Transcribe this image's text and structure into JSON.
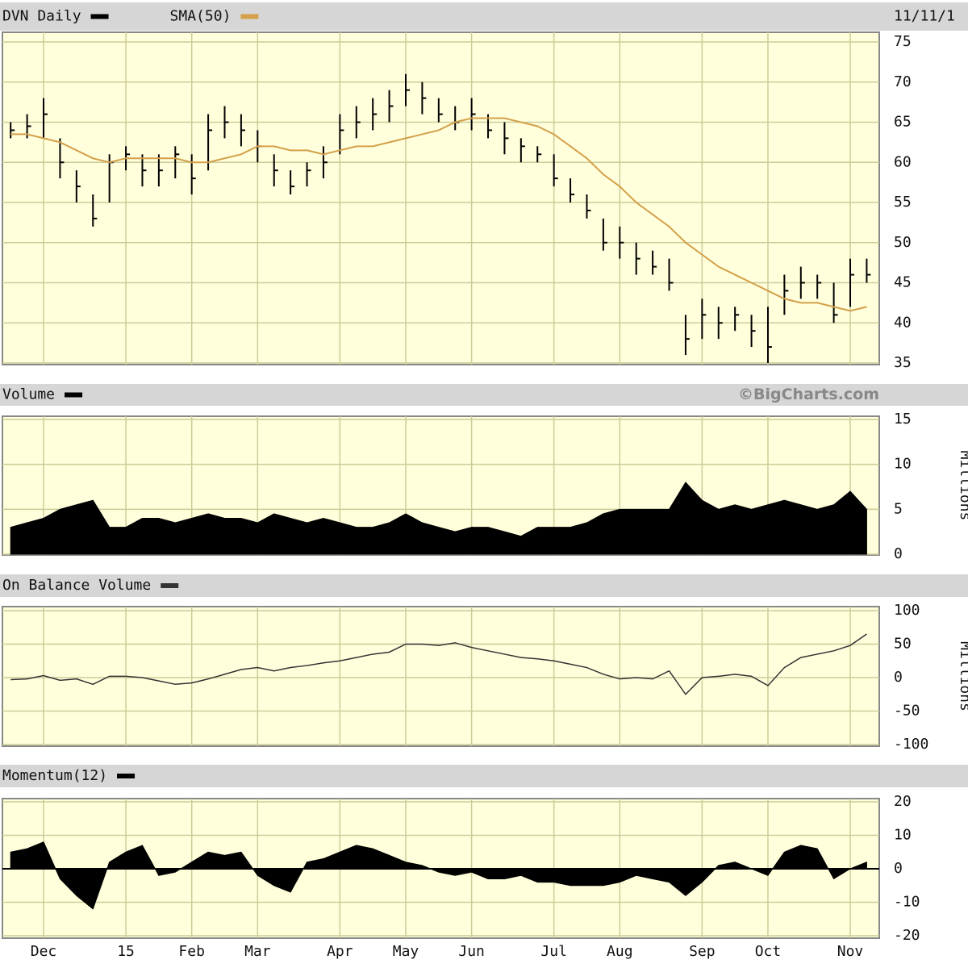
{
  "chart_data": [
    {
      "type": "ohlc",
      "date": "11/11/1",
      "series": [
        {
          "name": "DVN Daily",
          "color": "#000000",
          "high": [
            65,
            66,
            68,
            63,
            59,
            56,
            61,
            62,
            61,
            61,
            62,
            61,
            66,
            67,
            66,
            64,
            61,
            59,
            60,
            62,
            66,
            67,
            68,
            69,
            71,
            70,
            68,
            67,
            68,
            66,
            65,
            63,
            62,
            61,
            58,
            56,
            53,
            52,
            50,
            49,
            48,
            41,
            43,
            42,
            42,
            41,
            42,
            46,
            47,
            46,
            45,
            48,
            48
          ],
          "low": [
            63,
            63,
            63,
            58,
            55,
            52,
            55,
            59,
            57,
            57,
            58,
            56,
            59,
            63,
            62,
            60,
            57,
            56,
            57,
            58,
            61,
            63,
            64,
            65,
            67,
            66,
            65,
            64,
            64,
            63,
            61,
            60,
            60,
            57,
            55,
            53,
            49,
            48,
            46,
            46,
            44,
            36,
            38,
            38,
            39,
            37,
            35,
            41,
            43,
            43,
            40,
            42,
            45
          ],
          "values": [
            64,
            64.5,
            66,
            60,
            57,
            53,
            60,
            61,
            59,
            59,
            61,
            58,
            64,
            65,
            64,
            62,
            59,
            57,
            59,
            60,
            64,
            65,
            66,
            67,
            69,
            68,
            66,
            65,
            66,
            64,
            63,
            62,
            61,
            58,
            56,
            54,
            50,
            50,
            48,
            47,
            45,
            38,
            41,
            40,
            41,
            39,
            37,
            44,
            45,
            45,
            41,
            46,
            46
          ]
        },
        {
          "name": "SMA(50)",
          "color": "#d4a04a",
          "values": [
            63.5,
            63.5,
            63,
            62.5,
            61.5,
            60.5,
            60,
            60.5,
            60.5,
            60.5,
            60.5,
            60,
            60,
            60.5,
            61,
            62,
            62,
            61.5,
            61.5,
            61,
            61.5,
            62,
            62,
            62.5,
            63,
            63.5,
            64,
            65,
            65.5,
            65.5,
            65.5,
            65,
            64.5,
            63.5,
            62,
            60.5,
            58.5,
            57,
            55,
            53.5,
            52,
            50,
            48.5,
            47,
            46,
            45,
            44,
            43,
            42.5,
            42.5,
            42,
            41.5,
            42
          ]
        }
      ],
      "ylim": [
        35,
        75
      ],
      "yticks": [
        35,
        40,
        45,
        50,
        55,
        60,
        65,
        70,
        75
      ],
      "grid": true
    },
    {
      "type": "area",
      "credit": "©BigCharts.com",
      "y_label": "Millions",
      "series": [
        {
          "name": "Volume",
          "color": "#000000",
          "values": [
            3,
            3.5,
            4,
            5,
            5.5,
            6,
            3,
            3,
            4,
            4,
            3.5,
            4,
            4.5,
            4,
            4,
            3.5,
            4.5,
            4,
            3.5,
            4,
            3.5,
            3,
            3,
            3.5,
            4.5,
            3.5,
            3,
            2.5,
            3,
            3,
            2.5,
            2,
            3,
            3,
            3,
            3.5,
            4.5,
            5,
            5,
            5,
            5,
            8,
            6,
            5,
            5.5,
            5,
            5.5,
            6,
            5.5,
            5,
            5.5,
            7,
            5
          ]
        }
      ],
      "ylim": [
        0,
        15
      ],
      "yticks": [
        0,
        5,
        10,
        15
      ],
      "grid": true
    },
    {
      "type": "line",
      "y_label": "Millions",
      "series": [
        {
          "name": "On Balance Volume",
          "color": "#333333",
          "values": [
            -3,
            -2,
            3,
            -4,
            -2,
            -10,
            2,
            2,
            0,
            -5,
            -10,
            -8,
            -2,
            5,
            12,
            15,
            10,
            15,
            18,
            22,
            25,
            30,
            35,
            38,
            50,
            50,
            48,
            52,
            45,
            40,
            35,
            30,
            28,
            25,
            20,
            15,
            5,
            -2,
            0,
            -2,
            10,
            -25,
            0,
            2,
            5,
            2,
            -12,
            15,
            30,
            35,
            40,
            48,
            65
          ]
        }
      ],
      "ylim": [
        -100,
        100
      ],
      "yticks": [
        -100,
        -50,
        0,
        50,
        100
      ],
      "grid": true
    },
    {
      "type": "area",
      "series": [
        {
          "name": "Momentum(12)",
          "color": "#000000",
          "values": [
            5,
            6,
            8,
            -3,
            -8,
            -12,
            2,
            5,
            7,
            -2,
            -1,
            2,
            5,
            4,
            5,
            -2,
            -5,
            -7,
            2,
            3,
            5,
            7,
            6,
            4,
            2,
            1,
            -1,
            -2,
            -1,
            -3,
            -3,
            -2,
            -4,
            -4,
            -5,
            -5,
            -5,
            -4,
            -2,
            -3,
            -4,
            -8,
            -4,
            1,
            2,
            0,
            -2,
            5,
            7,
            6,
            -3,
            0,
            2
          ]
        }
      ],
      "categories": [
        null,
        null,
        "Dec",
        null,
        null,
        null,
        null,
        "15",
        null,
        null,
        null,
        "Feb",
        null,
        null,
        null,
        "Mar",
        null,
        null,
        null,
        null,
        "Apr",
        null,
        null,
        null,
        "May",
        null,
        null,
        null,
        "Jun",
        null,
        null,
        null,
        null,
        "Jul",
        null,
        null,
        null,
        "Aug",
        null,
        null,
        null,
        null,
        "Sep",
        null,
        null,
        null,
        "Oct",
        null,
        null,
        null,
        null,
        "Nov",
        null
      ],
      "ylim": [
        -20,
        20
      ],
      "yticks": [
        -20,
        -10,
        0,
        10,
        20
      ],
      "grid": true
    }
  ]
}
